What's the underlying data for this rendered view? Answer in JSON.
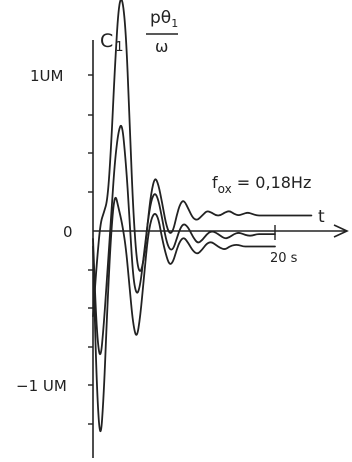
{
  "chart_data": {
    "type": "line",
    "y_label_main": "C",
    "y_label_sub": "1",
    "y_frac_num": "pθ",
    "y_frac_num_sub": "1",
    "y_frac_den": "ω",
    "x_label": "t",
    "annotation_main": "f",
    "annotation_sub": "ox",
    "annotation_rest": " = 0,18Hz",
    "y_tick_labels": {
      "pos": "1UM",
      "zero": "0",
      "neg": "−1 UM"
    },
    "x_tick_label": "20 s",
    "xlim": [
      0,
      26
    ],
    "ylim": [
      -1.4,
      1.6
    ],
    "series": [
      {
        "x": [
          0,
          0.4,
          0.8,
          1.2,
          1.6,
          2.0,
          2.4,
          2.8,
          3.2,
          3.6,
          4.0,
          4.4,
          4.8,
          5.2,
          5.6,
          6.0,
          6.4,
          6.8,
          7.2,
          7.6,
          8.0,
          8.4,
          8.8,
          9.2,
          9.6,
          10.0,
          10.5,
          11.0,
          11.5,
          12.0,
          12.5,
          13.0,
          13.5,
          14.0,
          14.5,
          15.0,
          15.5,
          16.0,
          16.5,
          17.0,
          17.5,
          18.0,
          18.5,
          19.0,
          19.5,
          20.0,
          21.0,
          22.0,
          23.0,
          24.0
        ],
        "y": [
          -0.55,
          -0.22,
          0.05,
          0.12,
          0.2,
          0.55,
          1.05,
          1.45,
          1.52,
          1.3,
          0.75,
          0.15,
          -0.2,
          -0.28,
          -0.18,
          0.05,
          0.25,
          0.35,
          0.3,
          0.18,
          0.05,
          -0.02,
          0.0,
          0.1,
          0.18,
          0.2,
          0.14,
          0.08,
          0.07,
          0.1,
          0.13,
          0.12,
          0.1,
          0.1,
          0.12,
          0.13,
          0.11,
          0.1,
          0.11,
          0.12,
          0.11,
          0.1,
          0.1,
          0.1,
          0.1,
          0.1,
          0.1,
          0.1,
          0.1,
          0.1
        ]
      },
      {
        "x": [
          0,
          0.4,
          0.8,
          1.2,
          1.6,
          2.0,
          2.4,
          2.8,
          3.2,
          3.6,
          4.0,
          4.4,
          4.8,
          5.2,
          5.6,
          6.0,
          6.4,
          6.8,
          7.2,
          7.6,
          8.0,
          8.4,
          8.8,
          9.2,
          9.6,
          10.0,
          10.5,
          11.0,
          11.5,
          12.0,
          12.5,
          13.0,
          13.5,
          14.0,
          14.5,
          15.0,
          15.5,
          16.0,
          16.5,
          17.0,
          17.5,
          18.0,
          18.5,
          19.0,
          19.5,
          20.0
        ],
        "y": [
          -0.05,
          -0.65,
          -0.85,
          -0.6,
          -0.25,
          0.1,
          0.45,
          0.65,
          0.7,
          0.45,
          0.1,
          -0.3,
          -0.42,
          -0.35,
          -0.15,
          0.05,
          0.2,
          0.25,
          0.2,
          0.08,
          -0.05,
          -0.12,
          -0.12,
          -0.05,
          0.02,
          0.05,
          0.02,
          -0.04,
          -0.08,
          -0.06,
          -0.02,
          0.0,
          -0.01,
          -0.03,
          -0.05,
          -0.04,
          -0.02,
          -0.01,
          -0.02,
          -0.03,
          -0.03,
          -0.02,
          -0.02,
          -0.02,
          -0.02,
          -0.02
        ]
      },
      {
        "x": [
          0,
          0.4,
          0.8,
          1.2,
          1.6,
          2.0,
          2.4,
          2.8,
          3.2,
          3.6,
          4.0,
          4.4,
          4.8,
          5.2,
          5.6,
          6.0,
          6.4,
          6.8,
          7.2,
          7.6,
          8.0,
          8.4,
          8.8,
          9.2,
          9.6,
          10.0,
          10.5,
          11.0,
          11.5,
          12.0,
          12.5,
          13.0,
          13.5,
          14.0,
          14.5,
          15.0,
          15.5,
          16.0,
          16.5,
          17.0,
          17.5,
          18.0,
          18.5,
          19.0,
          19.5,
          20.0
        ],
        "y": [
          -0.1,
          -1.0,
          -1.38,
          -1.05,
          -0.45,
          0.0,
          0.25,
          0.15,
          0.05,
          -0.1,
          -0.35,
          -0.6,
          -0.7,
          -0.55,
          -0.3,
          -0.05,
          0.08,
          0.12,
          0.08,
          -0.05,
          -0.15,
          -0.22,
          -0.2,
          -0.12,
          -0.06,
          -0.04,
          -0.08,
          -0.13,
          -0.15,
          -0.12,
          -0.08,
          -0.07,
          -0.09,
          -0.11,
          -0.12,
          -0.1,
          -0.09,
          -0.09,
          -0.1,
          -0.1,
          -0.1,
          -0.1,
          -0.1,
          -0.1,
          -0.1,
          -0.1
        ]
      }
    ]
  }
}
